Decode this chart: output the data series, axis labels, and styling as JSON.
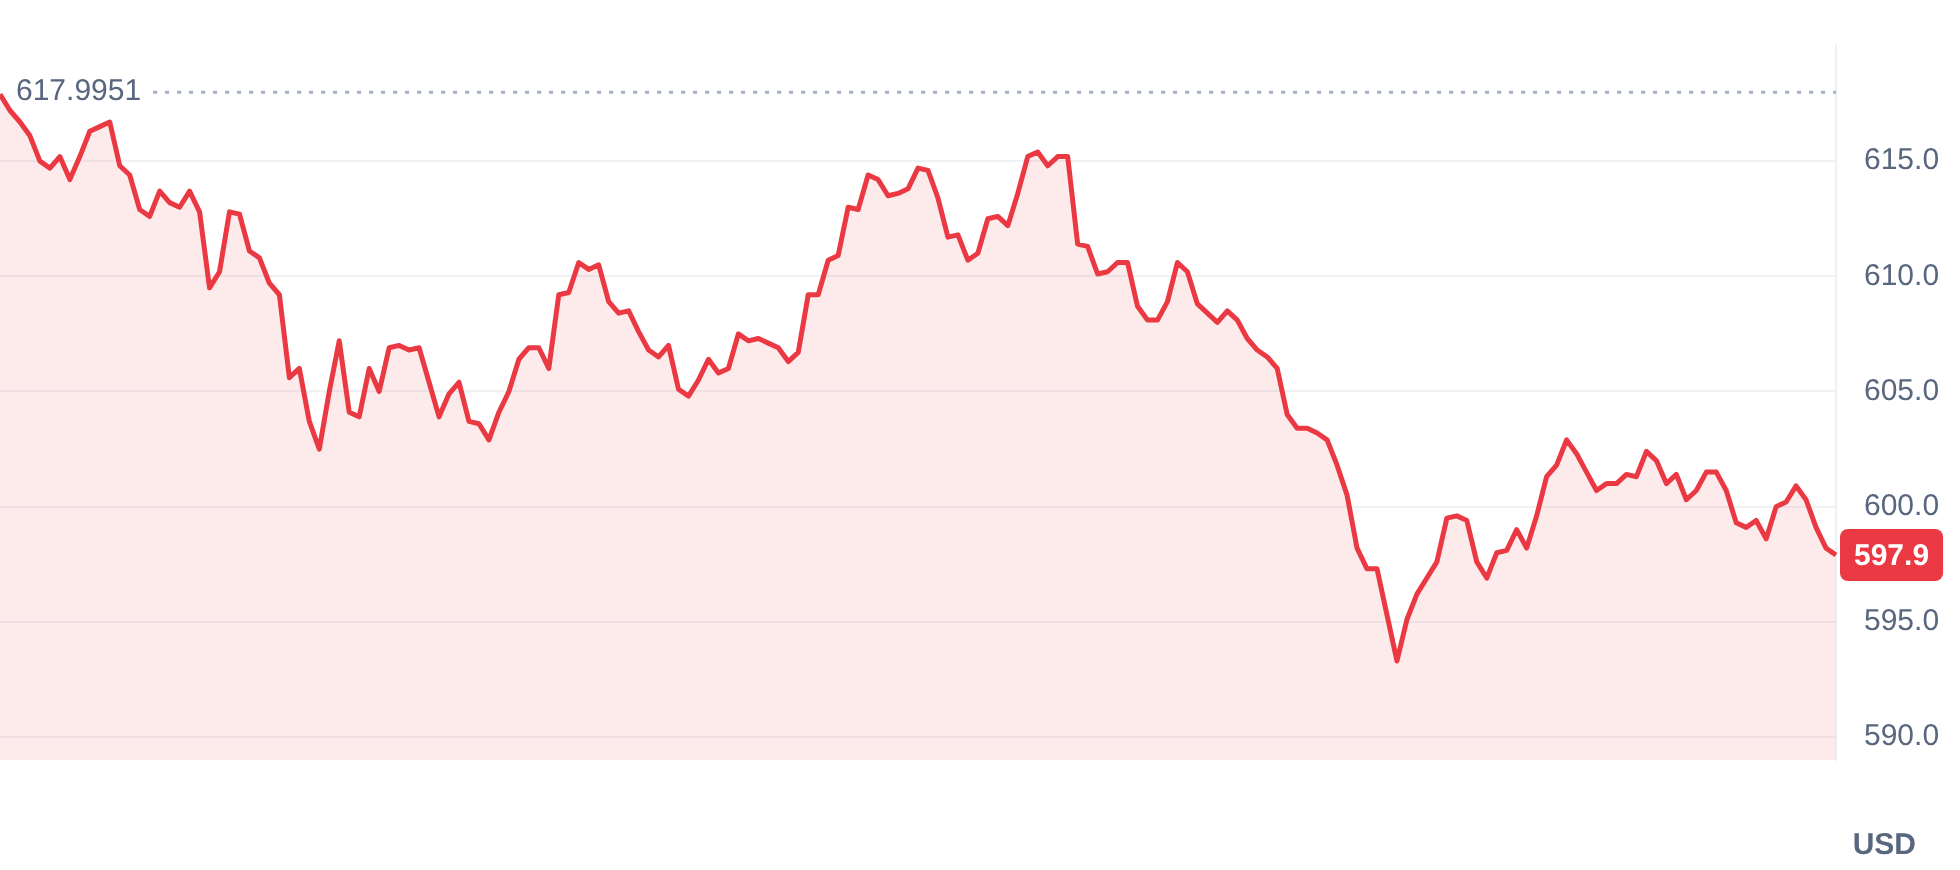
{
  "chart_data": {
    "type": "area",
    "ylabel": "USD",
    "categories": [
      null,
      null,
      null,
      null,
      null,
      null,
      null,
      null,
      null,
      null,
      null,
      null,
      null,
      null,
      null,
      null,
      null,
      null,
      null,
      null,
      null,
      null,
      null,
      null,
      null,
      null,
      null,
      null,
      null,
      null,
      null,
      null,
      null,
      null,
      null,
      null,
      null,
      null,
      null,
      null,
      null,
      null,
      null,
      null,
      null,
      null,
      null,
      null,
      null,
      null,
      null,
      null,
      null,
      null,
      null,
      null,
      null,
      null,
      null,
      null,
      null,
      null,
      null,
      null,
      null,
      null,
      null,
      null,
      null,
      null,
      null,
      null,
      null,
      null,
      null,
      null,
      null,
      null,
      null,
      null,
      null,
      null,
      null,
      null,
      null,
      null,
      null,
      null,
      null,
      null,
      null,
      null,
      null,
      null,
      null,
      null,
      null,
      null,
      null,
      null,
      null,
      null,
      null,
      null,
      null,
      null,
      null,
      null,
      null,
      null,
      null,
      null,
      null,
      null,
      null,
      null,
      null,
      null,
      null,
      null,
      null,
      null,
      null,
      null,
      null,
      null,
      null,
      null,
      null,
      null,
      null,
      null,
      null,
      null,
      null,
      null,
      null,
      null,
      null,
      null,
      null,
      null,
      null,
      null,
      null,
      null,
      null,
      null,
      null,
      null,
      null,
      null,
      null,
      null,
      null,
      null,
      null,
      null,
      null,
      null,
      null,
      null,
      null,
      null,
      null,
      null,
      null,
      null,
      null,
      null,
      null,
      null,
      null,
      null,
      null,
      null,
      null,
      null,
      null,
      null,
      null,
      null,
      null,
      null,
      null
    ],
    "series": [
      {
        "color": "#ea3943",
        "values": [
          617.9,
          617.2,
          616.7,
          616.1,
          615.0,
          614.7,
          615.2,
          614.2,
          615.2,
          616.3,
          616.5,
          616.7,
          614.8,
          614.4,
          612.9,
          612.6,
          613.7,
          613.2,
          613.0,
          613.7,
          612.8,
          609.5,
          610.2,
          612.8,
          612.7,
          611.1,
          610.8,
          609.7,
          609.2,
          605.6,
          606.0,
          603.7,
          602.5,
          605.0,
          607.2,
          604.1,
          603.9,
          606.0,
          605.0,
          606.9,
          607.0,
          606.8,
          606.9,
          605.4,
          603.9,
          604.9,
          605.4,
          603.7,
          603.6,
          602.9,
          604.1,
          605.0,
          606.4,
          606.9,
          606.9,
          606.0,
          609.2,
          609.3,
          610.6,
          610.3,
          610.5,
          608.9,
          608.4,
          608.5,
          607.6,
          606.8,
          606.5,
          607.0,
          605.1,
          604.8,
          605.5,
          606.4,
          605.8,
          606.0,
          607.5,
          607.2,
          607.3,
          607.1,
          606.9,
          606.3,
          606.7,
          609.2,
          609.2,
          610.7,
          610.9,
          613.0,
          612.9,
          614.4,
          614.2,
          613.5,
          613.6,
          613.8,
          614.7,
          614.6,
          613.4,
          611.7,
          611.8,
          610.7,
          611.0,
          612.5,
          612.6,
          612.2,
          613.6,
          615.2,
          615.4,
          614.8,
          615.2,
          615.2,
          611.4,
          611.3,
          610.1,
          610.2,
          610.6,
          610.6,
          608.7,
          608.1,
          608.1,
          608.9,
          610.6,
          610.2,
          608.8,
          608.4,
          608.0,
          608.5,
          608.1,
          607.3,
          606.8,
          606.5,
          606.0,
          604.0,
          603.4,
          603.4,
          603.2,
          602.9,
          601.8,
          600.5,
          598.2,
          597.3,
          597.3,
          595.3,
          593.3,
          595.1,
          596.2,
          596.9,
          597.6,
          599.5,
          599.6,
          599.4,
          597.6,
          596.9,
          598.0,
          598.1,
          599.0,
          598.2,
          599.6,
          601.3,
          601.8,
          602.9,
          602.3,
          601.5,
          600.7,
          601.0,
          601.0,
          601.4,
          601.3,
          602.4,
          602.0,
          601.0,
          601.4,
          600.3,
          600.7,
          601.5,
          601.5,
          600.7,
          599.3,
          599.1,
          599.4,
          598.6,
          600.0,
          600.2,
          600.9,
          600.3,
          599.1,
          598.2,
          597.9
        ]
      }
    ],
    "ylim": [
      589,
      620
    ],
    "yticks": [
      {
        "value": 590,
        "label": "590.0"
      },
      {
        "value": 595,
        "label": "595.0"
      },
      {
        "value": 600,
        "label": "600.0"
      },
      {
        "value": 605,
        "label": "605.0"
      },
      {
        "value": 610,
        "label": "610.0"
      },
      {
        "value": 615,
        "label": "615.0"
      }
    ],
    "grid": "y",
    "legend": false,
    "marker": "none",
    "line_style": "solid",
    "ref_lines": [
      {
        "axis": "y",
        "value": 617.9951,
        "label": "617.9951",
        "color": "#a6b0c3",
        "line_style": "dotted"
      }
    ],
    "annotations": [
      "597.9"
    ]
  }
}
